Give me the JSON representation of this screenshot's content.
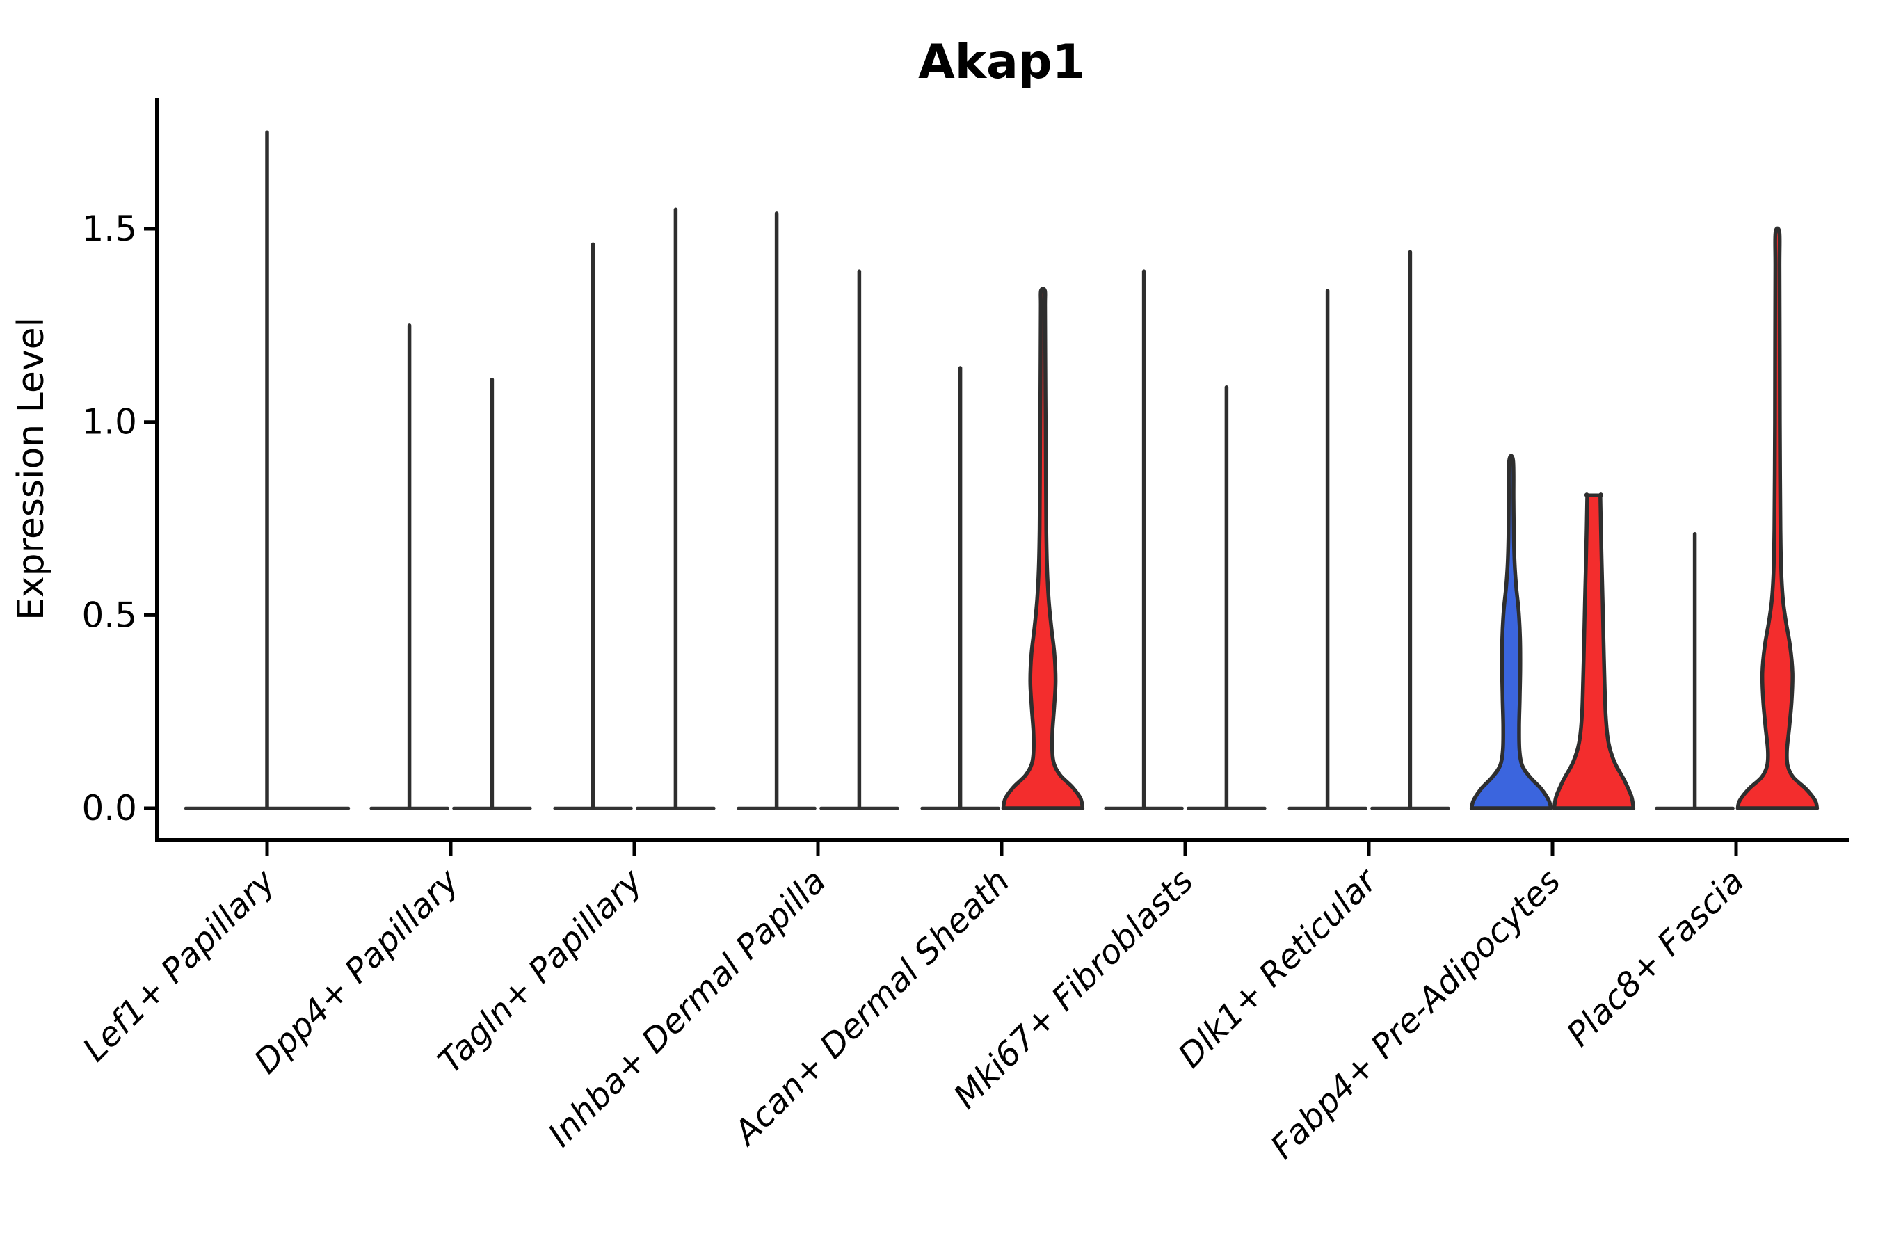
{
  "title": "Akap1",
  "chart_data": {
    "type": "violin",
    "title": "Akap1",
    "xlabel": "",
    "ylabel": "Expression Level",
    "ylim": [
      -0.08,
      1.84
    ],
    "grid": false,
    "legend": "none",
    "yticks": [
      0,
      0.5,
      1.0,
      1.5
    ],
    "ytick_labels": [
      "0.0",
      "0.5",
      "1.0",
      "1.5"
    ],
    "categories": [
      "Lef1+ Papillary",
      "Dpp4+ Papillary",
      "Tagln+ Papillary",
      "Inhba+ Dermal Papilla",
      "Acan+ Dermal Sheath",
      "Mki67+ Fibroblasts",
      "Dlk1+ Reticular",
      "Fabp4+ Pre-Adipocytes",
      "Plac8+ Fascia"
    ],
    "group_colors": {
      "blue": "#3b65de",
      "red": "#f32d2d",
      "outline": "#2e2e2e"
    },
    "violins": [
      {
        "category_index": 0,
        "position": "center",
        "style": "spike",
        "peak": 1.75,
        "fill": "none"
      },
      {
        "category_index": 1,
        "position": "left",
        "style": "spike",
        "peak": 1.25,
        "fill": "none"
      },
      {
        "category_index": 1,
        "position": "right",
        "style": "spike",
        "peak": 1.11,
        "fill": "none"
      },
      {
        "category_index": 2,
        "position": "left",
        "style": "spike",
        "peak": 1.46,
        "fill": "none"
      },
      {
        "category_index": 2,
        "position": "right",
        "style": "spike",
        "peak": 1.55,
        "fill": "none"
      },
      {
        "category_index": 3,
        "position": "left",
        "style": "spike",
        "peak": 1.54,
        "fill": "none"
      },
      {
        "category_index": 3,
        "position": "right",
        "style": "spike",
        "peak": 1.39,
        "fill": "none"
      },
      {
        "category_index": 4,
        "position": "left",
        "style": "spike",
        "peak": 1.14,
        "fill": "none"
      },
      {
        "category_index": 4,
        "position": "right",
        "style": "violin",
        "peak": 1.34,
        "fill": "#f32d2d",
        "profile": [
          [
            0,
            1
          ],
          [
            0.025,
            0.95
          ],
          [
            0.055,
            0.74
          ],
          [
            0.085,
            0.44
          ],
          [
            0.115,
            0.28
          ],
          [
            0.15,
            0.235
          ],
          [
            0.2,
            0.24
          ],
          [
            0.27,
            0.29
          ],
          [
            0.33,
            0.32
          ],
          [
            0.4,
            0.29
          ],
          [
            0.47,
            0.21
          ],
          [
            0.54,
            0.145
          ],
          [
            0.62,
            0.105
          ],
          [
            0.72,
            0.085
          ],
          [
            0.85,
            0.075
          ],
          [
            1.0,
            0.068
          ],
          [
            1.17,
            0.06
          ],
          [
            1.3,
            0.055
          ],
          [
            1.34,
            0.05
          ]
        ]
      },
      {
        "category_index": 5,
        "position": "left",
        "style": "spike",
        "peak": 1.39,
        "fill": "none"
      },
      {
        "category_index": 5,
        "position": "right",
        "style": "spike",
        "peak": 1.09,
        "fill": "none"
      },
      {
        "category_index": 6,
        "position": "left",
        "style": "spike",
        "peak": 1.34,
        "fill": "none"
      },
      {
        "category_index": 6,
        "position": "right",
        "style": "spike",
        "peak": 1.44,
        "fill": "none"
      },
      {
        "category_index": 7,
        "position": "left",
        "style": "violin",
        "peak": 0.9,
        "fill": "#3b65de",
        "profile": [
          [
            0,
            1
          ],
          [
            0.02,
            0.95
          ],
          [
            0.05,
            0.76
          ],
          [
            0.08,
            0.48
          ],
          [
            0.11,
            0.28
          ],
          [
            0.15,
            0.21
          ],
          [
            0.21,
            0.2
          ],
          [
            0.28,
            0.215
          ],
          [
            0.36,
            0.23
          ],
          [
            0.44,
            0.225
          ],
          [
            0.51,
            0.19
          ],
          [
            0.57,
            0.13
          ],
          [
            0.63,
            0.09
          ],
          [
            0.7,
            0.068
          ],
          [
            0.8,
            0.06
          ],
          [
            0.9,
            0.05
          ]
        ]
      },
      {
        "category_index": 7,
        "position": "right",
        "style": "violin",
        "peak": 0.81,
        "truncated": true,
        "fill": "#f32d2d",
        "profile": [
          [
            0,
            1
          ],
          [
            0.03,
            0.95
          ],
          [
            0.07,
            0.78
          ],
          [
            0.12,
            0.52
          ],
          [
            0.17,
            0.37
          ],
          [
            0.24,
            0.3
          ],
          [
            0.33,
            0.27
          ],
          [
            0.43,
            0.245
          ],
          [
            0.53,
            0.225
          ],
          [
            0.63,
            0.2
          ],
          [
            0.72,
            0.18
          ],
          [
            0.78,
            0.17
          ],
          [
            0.81,
            0.165
          ]
        ]
      },
      {
        "category_index": 8,
        "position": "left",
        "style": "spike",
        "peak": 0.71,
        "fill": "none"
      },
      {
        "category_index": 8,
        "position": "right",
        "style": "violin",
        "peak": 1.49,
        "fill": "#f32d2d",
        "profile": [
          [
            0,
            1
          ],
          [
            0.02,
            0.95
          ],
          [
            0.05,
            0.72
          ],
          [
            0.08,
            0.4
          ],
          [
            0.11,
            0.26
          ],
          [
            0.15,
            0.24
          ],
          [
            0.21,
            0.3
          ],
          [
            0.28,
            0.36
          ],
          [
            0.35,
            0.38
          ],
          [
            0.42,
            0.32
          ],
          [
            0.48,
            0.22
          ],
          [
            0.54,
            0.14
          ],
          [
            0.62,
            0.095
          ],
          [
            0.72,
            0.078
          ],
          [
            0.85,
            0.068
          ],
          [
            1.0,
            0.062
          ],
          [
            1.2,
            0.058
          ],
          [
            1.4,
            0.053
          ],
          [
            1.49,
            0.05
          ]
        ]
      }
    ]
  }
}
